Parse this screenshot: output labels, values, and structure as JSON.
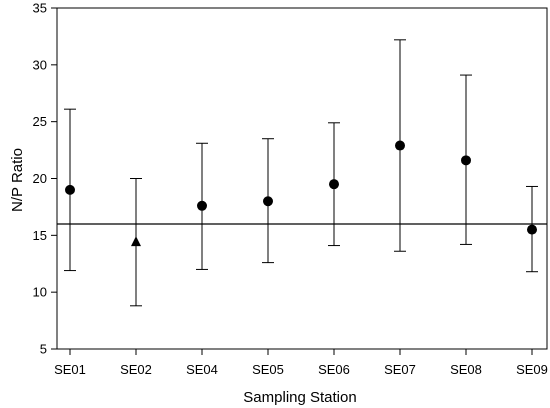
{
  "chart_data": {
    "type": "scatter",
    "title": "",
    "xlabel": "Sampling Station",
    "ylabel": "N/P Ratio",
    "categories": [
      "SE01",
      "SE02",
      "SE04",
      "SE05",
      "SE06",
      "SE07",
      "SE08",
      "SE09"
    ],
    "ylim": [
      5,
      35
    ],
    "yticks": [
      5,
      10,
      15,
      20,
      25,
      30,
      35
    ],
    "grid": false,
    "legend": "none",
    "reference_line": {
      "value": 16
    },
    "series": [
      {
        "values": [
          19.0,
          14.4,
          17.6,
          18.0,
          19.5,
          22.9,
          21.6,
          15.5
        ],
        "error_low": [
          11.9,
          8.8,
          12.0,
          12.6,
          14.1,
          13.6,
          14.2,
          11.8
        ],
        "error_high": [
          26.1,
          20.0,
          23.1,
          23.5,
          24.9,
          32.2,
          29.1,
          19.3
        ],
        "markers": [
          "circle",
          "triangle",
          "circle",
          "circle",
          "circle",
          "circle",
          "circle",
          "circle"
        ]
      }
    ],
    "colors": {
      "marker": "#000000",
      "axis": "#000000"
    }
  }
}
